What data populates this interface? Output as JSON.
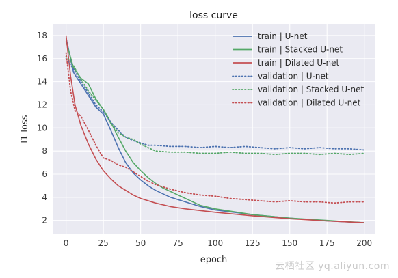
{
  "chart_data": {
    "type": "line",
    "title": "loss curve",
    "xlabel": "epoch",
    "ylabel": "l1 loss",
    "xlim": [
      -9,
      207
    ],
    "ylim": [
      0.8,
      19
    ],
    "x_ticks": [
      0,
      25,
      50,
      75,
      100,
      125,
      150,
      175,
      200
    ],
    "y_ticks": [
      2,
      4,
      6,
      8,
      10,
      12,
      14,
      16,
      18
    ],
    "grid": true,
    "legend_position": "top-right",
    "background": "#eaeaf2",
    "series": [
      {
        "name": "train | U-net",
        "style": "solid",
        "color": "#4c72b0",
        "x": [
          0,
          5,
          10,
          15,
          20,
          25,
          30,
          35,
          40,
          45,
          50,
          55,
          60,
          65,
          70,
          80,
          90,
          100,
          125,
          150,
          175,
          200
        ],
        "y": [
          17.8,
          14.8,
          13.8,
          12.8,
          11.8,
          11.2,
          9.8,
          8.3,
          7.0,
          6.1,
          5.5,
          5.0,
          4.6,
          4.3,
          4.0,
          3.6,
          3.2,
          2.9,
          2.5,
          2.2,
          1.95,
          1.8
        ]
      },
      {
        "name": "train | Stacked U-net",
        "style": "solid",
        "color": "#55a868",
        "x": [
          0,
          5,
          10,
          15,
          20,
          25,
          30,
          35,
          40,
          45,
          50,
          55,
          60,
          65,
          70,
          80,
          90,
          100,
          125,
          150,
          175,
          200
        ],
        "y": [
          17.5,
          15.2,
          14.3,
          13.8,
          12.5,
          11.6,
          10.5,
          9.2,
          8.0,
          7.0,
          6.3,
          5.7,
          5.2,
          4.8,
          4.5,
          3.9,
          3.3,
          3.0,
          2.5,
          2.2,
          2.0,
          1.8
        ]
      },
      {
        "name": "train | Dilated U-net",
        "style": "solid",
        "color": "#c44e52",
        "x": [
          0,
          3,
          6,
          10,
          15,
          20,
          25,
          30,
          35,
          40,
          45,
          50,
          60,
          70,
          80,
          90,
          100,
          125,
          150,
          175,
          200
        ],
        "y": [
          18.0,
          14.5,
          12.0,
          10.2,
          8.6,
          7.3,
          6.3,
          5.6,
          5.0,
          4.6,
          4.2,
          3.9,
          3.5,
          3.2,
          3.0,
          2.85,
          2.7,
          2.4,
          2.15,
          1.95,
          1.8
        ]
      },
      {
        "name": "validation | U-net",
        "style": "dotted",
        "color": "#4c72b0",
        "x": [
          0,
          5,
          10,
          15,
          20,
          25,
          30,
          35,
          40,
          45,
          50,
          55,
          60,
          70,
          80,
          90,
          100,
          110,
          120,
          130,
          140,
          150,
          160,
          170,
          180,
          190,
          200
        ],
        "y": [
          16.0,
          15.1,
          14.0,
          13.0,
          12.0,
          11.4,
          10.5,
          9.8,
          9.2,
          8.9,
          8.7,
          8.5,
          8.5,
          8.4,
          8.4,
          8.3,
          8.4,
          8.3,
          8.4,
          8.3,
          8.2,
          8.3,
          8.2,
          8.3,
          8.2,
          8.2,
          8.1
        ]
      },
      {
        "name": "validation | Stacked U-net",
        "style": "dotted",
        "color": "#55a868",
        "x": [
          0,
          5,
          10,
          15,
          20,
          25,
          30,
          35,
          40,
          45,
          50,
          55,
          60,
          70,
          80,
          90,
          100,
          110,
          120,
          130,
          140,
          150,
          160,
          170,
          180,
          190,
          200
        ],
        "y": [
          16.2,
          15.4,
          14.2,
          13.2,
          12.4,
          11.6,
          10.4,
          9.6,
          9.2,
          9.0,
          8.6,
          8.3,
          8.0,
          7.9,
          7.9,
          7.8,
          7.8,
          7.9,
          7.8,
          7.8,
          7.7,
          7.8,
          7.8,
          7.7,
          7.8,
          7.7,
          7.8
        ]
      },
      {
        "name": "validation | Dilated U-net",
        "style": "dotted",
        "color": "#c44e52",
        "x": [
          0,
          3,
          6,
          10,
          15,
          20,
          25,
          30,
          35,
          40,
          45,
          50,
          55,
          60,
          70,
          80,
          90,
          100,
          110,
          120,
          130,
          140,
          150,
          160,
          170,
          180,
          190,
          200
        ],
        "y": [
          16.5,
          13.2,
          11.5,
          11.0,
          9.8,
          8.5,
          7.4,
          7.2,
          6.8,
          6.6,
          6.2,
          5.8,
          5.4,
          5.1,
          4.7,
          4.4,
          4.2,
          4.1,
          3.9,
          3.8,
          3.7,
          3.6,
          3.7,
          3.6,
          3.6,
          3.5,
          3.6,
          3.6
        ]
      }
    ]
  },
  "watermark": "云栖社区 yq.aliyun.com"
}
